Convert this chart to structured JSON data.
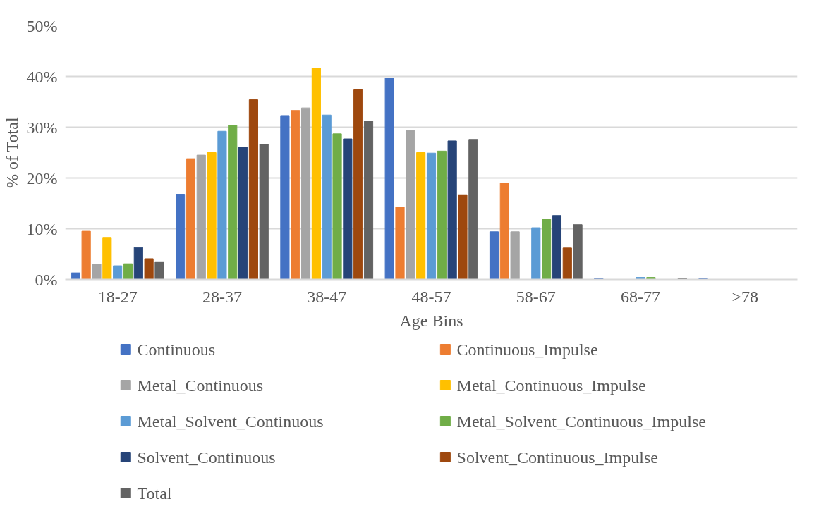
{
  "chart_data": {
    "type": "bar",
    "xlabel": "Age Bins",
    "ylabel": "% of Total",
    "categories": [
      "18-27",
      "28-37",
      "38-47",
      "48-57",
      "58-67",
      "68-77",
      ">78"
    ],
    "ylim": [
      0,
      50
    ],
    "yticks": [
      {
        "value": 0,
        "label": "0%"
      },
      {
        "value": 10,
        "label": "10%"
      },
      {
        "value": 20,
        "label": "20%"
      },
      {
        "value": 30,
        "label": "30%"
      },
      {
        "value": 40,
        "label": "40%"
      },
      {
        "value": 50,
        "label": "50%"
      }
    ],
    "grid": "y",
    "legend": "bottom",
    "series": [
      {
        "name": "Continuous",
        "color": "#4472c4",
        "values": [
          1.3,
          16.8,
          32.3,
          39.7,
          9.4,
          0.2,
          0.2
        ]
      },
      {
        "name": "Continuous_Impulse",
        "color": "#ed7d31",
        "values": [
          9.5,
          23.8,
          33.3,
          14.3,
          19.0,
          0,
          0
        ]
      },
      {
        "name": "Metal_Continuous",
        "color": "#a5a5a5",
        "values": [
          3.0,
          24.5,
          33.8,
          29.3,
          9.4,
          0,
          0
        ]
      },
      {
        "name": "Metal_Continuous_Impulse",
        "color": "#ffc000",
        "values": [
          8.3,
          25.0,
          41.6,
          25.0,
          0,
          0,
          0
        ]
      },
      {
        "name": "Metal_Solvent_Continuous",
        "color": "#5b9bd5",
        "values": [
          2.7,
          29.2,
          32.4,
          24.9,
          10.2,
          0.4,
          0
        ]
      },
      {
        "name": "Metal_Solvent_Continuous_Impulse",
        "color": "#70ad47",
        "values": [
          3.1,
          30.4,
          28.7,
          25.3,
          11.9,
          0.4,
          0
        ]
      },
      {
        "name": "Solvent_Continuous",
        "color": "#264478",
        "values": [
          6.3,
          26.1,
          27.7,
          27.3,
          12.6,
          0,
          0
        ]
      },
      {
        "name": "Solvent_Continuous_Impulse",
        "color": "#9e480e",
        "values": [
          4.1,
          35.4,
          37.5,
          16.7,
          6.2,
          0,
          0
        ]
      },
      {
        "name": "Total",
        "color": "#636363",
        "values": [
          3.5,
          26.6,
          31.2,
          27.6,
          10.8,
          0.2,
          0
        ]
      }
    ]
  }
}
